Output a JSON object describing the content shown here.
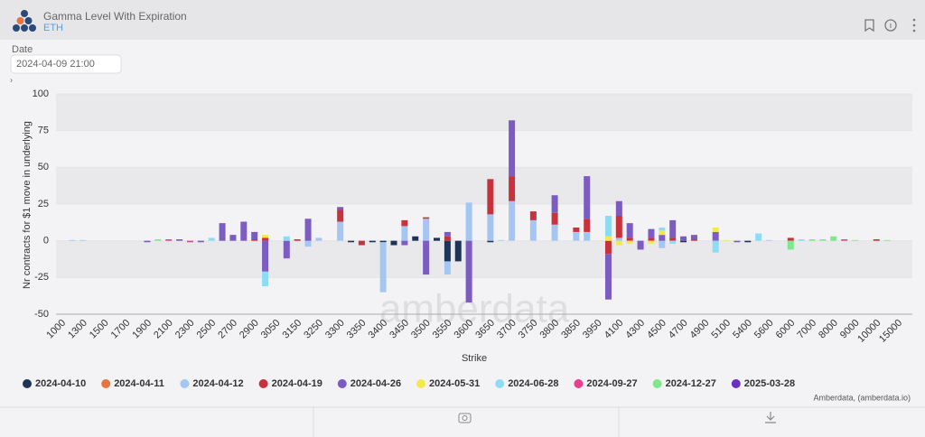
{
  "header": {
    "title": "Gamma Level With Expiration",
    "asset": "ETH"
  },
  "filter": {
    "label": "Date",
    "value": "2024-04-09 21:00"
  },
  "watermark": "amberdata",
  "credit": "Amberdata, (amberdata.io)",
  "chart_data": {
    "type": "bar",
    "stacked": true,
    "x_label": "Strike",
    "y_label": "Nr contracts for $1 move in underlying",
    "categories": [
      "1000",
      null,
      "1300",
      null,
      "1500",
      null,
      "1700",
      null,
      "1900",
      null,
      "2100",
      null,
      "2300",
      null,
      "2500",
      null,
      "2700",
      null,
      "2900",
      null,
      "3050",
      null,
      "3150",
      null,
      "3250",
      null,
      "3300",
      null,
      "3350",
      null,
      "3400",
      null,
      "3450",
      null,
      "3500",
      null,
      "3550",
      null,
      "3600",
      null,
      "3650",
      null,
      "3700",
      null,
      "3750",
      null,
      "3800",
      null,
      "3850",
      null,
      "3950",
      null,
      "4100",
      null,
      "4300",
      null,
      "4500",
      null,
      "4700",
      null,
      "4900",
      null,
      "5100",
      null,
      "5400",
      null,
      "5600",
      null,
      "6000",
      null,
      "7000",
      null,
      "8000",
      null,
      "9000",
      null,
      "10000",
      null,
      "15000"
    ],
    "ylim": [
      -50,
      100
    ],
    "yticks": [
      -50,
      -25,
      0,
      25,
      50,
      75,
      100
    ],
    "grid_bands": true,
    "series": [
      {
        "name": "2024-04-10",
        "color": "#1e3456",
        "values": [
          0,
          0,
          0,
          0,
          0,
          0,
          0,
          0,
          0,
          0,
          0,
          0,
          0,
          0,
          0,
          0,
          0,
          0,
          0,
          0,
          0,
          0,
          0,
          0,
          0,
          0,
          0,
          -1,
          0,
          -1,
          -1,
          -3,
          0,
          3,
          0,
          2,
          -14,
          -14,
          0,
          0,
          -1,
          0,
          0,
          0,
          0,
          0,
          0,
          0,
          0,
          0,
          0,
          0,
          0,
          0,
          0,
          0,
          0,
          0,
          -1,
          0,
          0,
          0,
          0,
          0,
          -1,
          0,
          0,
          0,
          0,
          0,
          0,
          0,
          0,
          0,
          0,
          0,
          0,
          0,
          0
        ]
      },
      {
        "name": "2024-04-11",
        "color": "#e8763c",
        "values": [
          0,
          0,
          0,
          0,
          0,
          0,
          0,
          0,
          0,
          0,
          0,
          0,
          0,
          0,
          0,
          0,
          0,
          0,
          0,
          0,
          0,
          0,
          0,
          0,
          0,
          0,
          0,
          0,
          0,
          0,
          0,
          0,
          0,
          0,
          0,
          0,
          0,
          0,
          0,
          0,
          0,
          0,
          0,
          0,
          0,
          0,
          0,
          0,
          0,
          0,
          0,
          0,
          0,
          0,
          0,
          0,
          0,
          0,
          0,
          0,
          0,
          0,
          0,
          0,
          0,
          0,
          0,
          0,
          0,
          0,
          0,
          0,
          0,
          0,
          0,
          0,
          0,
          0,
          0
        ]
      },
      {
        "name": "2024-04-12",
        "color": "#a5c6f2",
        "values": [
          0,
          0.5,
          0.5,
          0,
          0,
          0,
          0,
          0,
          0,
          0,
          0,
          0,
          0,
          0,
          0,
          0,
          0,
          0,
          0,
          0,
          0,
          0,
          0,
          -4,
          2,
          0,
          13,
          0,
          0,
          0,
          -34,
          0,
          10,
          0,
          15,
          0,
          -9,
          0,
          26,
          0,
          18,
          0.5,
          27,
          0,
          14,
          0,
          11,
          0,
          6,
          6,
          0,
          0,
          2,
          0,
          0,
          0,
          -5,
          0,
          0,
          0,
          0,
          0,
          0,
          0,
          0,
          0,
          0.5,
          0,
          0,
          0,
          0,
          0,
          0,
          0,
          0,
          0,
          0,
          0,
          0
        ]
      },
      {
        "name": "2024-04-19",
        "color": "#c8323c",
        "values": [
          0,
          0,
          0,
          0,
          0,
          0,
          0,
          0,
          0,
          0,
          0,
          0,
          0,
          0,
          0,
          0,
          0,
          0,
          1,
          2,
          0,
          0,
          1,
          0,
          0,
          0,
          8,
          0,
          -3,
          0,
          0,
          0,
          4,
          0,
          1,
          0,
          3,
          0,
          0,
          0,
          24,
          0,
          17,
          0,
          6,
          0,
          8,
          0,
          3,
          9,
          0,
          -9,
          15,
          2,
          0,
          2,
          0,
          2,
          0,
          1,
          0,
          0,
          0,
          0,
          0,
          0,
          0,
          0,
          2,
          0,
          0,
          0,
          0,
          0,
          0,
          0,
          1,
          0,
          0
        ]
      },
      {
        "name": "2024-04-26",
        "color": "#7c5cc0",
        "values": [
          0,
          0,
          0,
          0,
          0,
          0,
          0,
          0,
          -1,
          0,
          0,
          1,
          0,
          -1,
          0,
          12,
          4,
          13,
          5,
          -21,
          0,
          -12,
          0,
          15,
          0,
          0,
          2,
          0,
          0,
          0,
          0,
          0,
          -3,
          0,
          -23,
          0,
          3,
          0,
          -42,
          0,
          0,
          0,
          38,
          0,
          0,
          0,
          12,
          0,
          0,
          29,
          0,
          -31,
          10,
          10,
          -6,
          6,
          4,
          12,
          3,
          3,
          0,
          6,
          0,
          -1,
          0,
          0,
          0,
          0,
          0,
          0,
          0,
          0,
          0,
          0,
          0,
          0,
          0,
          0,
          0
        ]
      },
      {
        "name": "2024-05-31",
        "color": "#f2e94c",
        "values": [
          0,
          0,
          0,
          0,
          0,
          0,
          0,
          0,
          0,
          0,
          0,
          0,
          0,
          0,
          0,
          0,
          0,
          0,
          0,
          2,
          0,
          0,
          0,
          0,
          0,
          0,
          0,
          0,
          0,
          0,
          0,
          0,
          0,
          0,
          0,
          0,
          0,
          0,
          0,
          0,
          0,
          0,
          0,
          0,
          0,
          0,
          0,
          0,
          0,
          0,
          0,
          3,
          -3,
          -2,
          0,
          -2,
          3,
          0,
          0,
          0,
          0,
          3,
          0.5,
          0,
          0,
          0,
          0,
          0,
          0,
          0,
          0,
          0,
          0,
          0,
          0,
          0,
          0,
          0,
          0
        ]
      },
      {
        "name": "2024-06-28",
        "color": "#8edcf4",
        "values": [
          0,
          0,
          0,
          0,
          0,
          0,
          0,
          0,
          0,
          0,
          0,
          0,
          0,
          0,
          2,
          0,
          0,
          0,
          0,
          -10,
          0,
          3,
          0,
          0,
          0,
          0,
          0,
          0,
          0,
          0,
          0,
          0,
          0,
          0,
          0,
          0,
          0,
          0,
          0,
          0,
          0,
          0,
          0,
          0,
          0,
          0,
          0,
          0,
          0,
          0,
          0,
          14,
          0,
          0,
          0,
          0,
          2,
          -2,
          0,
          0,
          0,
          -8,
          0,
          0,
          0,
          5,
          0,
          0,
          0,
          1,
          0,
          0,
          0,
          0,
          0,
          0,
          0,
          0,
          0
        ]
      },
      {
        "name": "2024-09-27",
        "color": "#e8408e",
        "values": [
          0,
          0,
          0,
          0,
          0,
          0,
          0,
          0,
          0,
          0,
          1,
          0,
          -1,
          0,
          0,
          0,
          0,
          0,
          0,
          0,
          0,
          0,
          0,
          0,
          0,
          0,
          0,
          0,
          0,
          0,
          0,
          0,
          0,
          0,
          0,
          0,
          0,
          0,
          0,
          0,
          0,
          0,
          0,
          0,
          0,
          0,
          0,
          0,
          0,
          0,
          0,
          0,
          0,
          0,
          0,
          0,
          0,
          0,
          0,
          0,
          0,
          0,
          0,
          0,
          0,
          0,
          0,
          0,
          0,
          0,
          0,
          0,
          0,
          1,
          0,
          0,
          0,
          0,
          0
        ]
      },
      {
        "name": "2024-12-27",
        "color": "#7ee88c",
        "values": [
          0,
          0,
          0,
          0,
          0,
          0,
          0,
          0,
          0,
          1,
          0,
          0,
          0,
          0,
          0,
          0,
          0,
          0,
          0,
          0,
          0,
          0,
          0,
          0,
          0,
          0,
          0,
          0,
          0,
          0,
          0,
          0,
          0,
          0,
          0,
          0,
          0,
          0,
          0,
          0,
          0,
          0,
          0,
          0,
          0,
          0,
          0,
          0,
          0,
          0,
          0,
          0,
          0,
          0,
          0,
          0,
          0,
          0,
          0,
          0,
          0,
          0,
          0,
          0,
          0,
          0,
          0,
          0,
          -6,
          0,
          1,
          1,
          3,
          0,
          0.5,
          0,
          0,
          0.5,
          0
        ]
      },
      {
        "name": "2025-03-28",
        "color": "#6c30c0",
        "values": [
          0,
          0,
          0,
          0,
          0,
          0,
          0,
          0,
          0,
          0,
          0,
          0,
          0,
          0,
          0,
          0,
          0,
          0,
          0,
          0,
          0,
          0,
          0,
          0,
          0,
          0,
          0,
          0,
          0,
          0,
          0,
          0,
          0,
          0,
          0,
          0,
          0,
          0,
          0,
          0,
          0,
          0,
          0,
          0,
          0,
          0,
          0,
          0,
          0,
          0,
          0,
          0,
          0,
          0,
          0,
          0,
          0,
          0,
          0,
          0,
          0,
          0,
          0,
          0,
          0,
          0,
          0,
          0,
          0,
          0,
          0,
          0,
          0,
          0,
          0,
          0,
          0,
          0,
          0
        ]
      }
    ]
  }
}
